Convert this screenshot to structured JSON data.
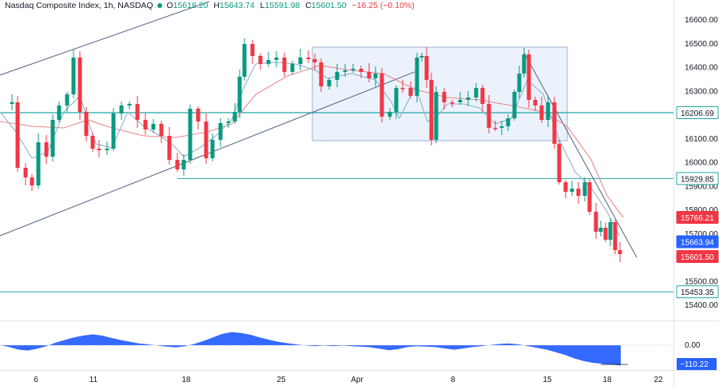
{
  "header": {
    "symbol": "Nasdaq Composite Index, 1h, NASDAQ",
    "o_label": "O",
    "o": "15618.20",
    "h_label": "H",
    "h": "15643.74",
    "l_label": "L",
    "l": "15591.98",
    "c_label": "C",
    "c": "15601.50",
    "change": "−16.25 (−0.10%)"
  },
  "colors": {
    "up": "#089981",
    "down": "#f23645",
    "fast_ma": "#8fb1cc",
    "slow_ma": "#e98a8a",
    "level_line": "#20a5a5",
    "trend_line": "#5d6c8f",
    "box_fill": "#e8f0fb",
    "box_stroke": "#9bb3d6",
    "oscillator": "#2962ff"
  },
  "chart_data": {
    "type": "candlestick",
    "ylim": [
      15400,
      16600
    ],
    "y_ticks": [
      "16600.00",
      "16500.00",
      "16400.00",
      "16300.00",
      "16200.00",
      "16100.00",
      "16000.00",
      "15900.00",
      "15800.00",
      "15700.00",
      "15600.00",
      "15500.00",
      "15400.00"
    ],
    "x_ticks": [
      "6",
      "11",
      "18",
      "25",
      "Apr",
      "8",
      "15",
      "18",
      "22"
    ],
    "horizontal_levels": [
      16206.69,
      15929.85,
      15453.35
    ],
    "price_labels": [
      {
        "value": "16206.69",
        "kind": "level"
      },
      {
        "value": "15929.85",
        "kind": "level"
      },
      {
        "value": "15766.21",
        "kind": "slow_ma"
      },
      {
        "value": "15663.94",
        "kind": "fast_ma"
      },
      {
        "value": "15601.50",
        "kind": "last"
      },
      {
        "value": "15453.35",
        "kind": "level"
      }
    ],
    "oscillator": {
      "zero_label": "0.00",
      "last_label": "−110.22",
      "values": [
        0.02,
        -0.1,
        -0.25,
        -0.3,
        -0.2,
        -0.05,
        0.15,
        0.3,
        0.45,
        0.55,
        0.62,
        0.55,
        0.42,
        0.3,
        0.2,
        0.1,
        0.05,
        -0.02,
        -0.08,
        -0.12,
        -0.05,
        0.08,
        0.25,
        0.45,
        0.65,
        0.75,
        0.7,
        0.6,
        0.45,
        0.32,
        0.2,
        0.12,
        0.05,
        -0.02,
        -0.05,
        -0.02,
        -0.05,
        -0.02,
        -0.06,
        -0.08,
        -0.12,
        -0.2,
        -0.28,
        -0.22,
        -0.1,
        -0.05,
        -0.08,
        -0.1,
        -0.18,
        -0.25,
        -0.18,
        -0.1,
        -0.05,
        0.02,
        0.08,
        0.1,
        0.05,
        -0.05,
        -0.15,
        -0.25,
        -0.4,
        -0.55,
        -0.75,
        -0.9,
        -1.0,
        -1.05,
        -1.1,
        -1.15
      ]
    }
  }
}
